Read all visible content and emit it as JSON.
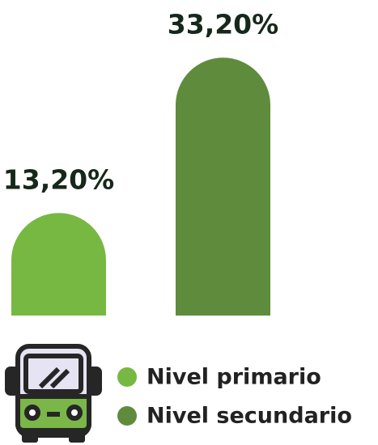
{
  "chart_data": {
    "type": "bar",
    "categories": [
      "Nivel primario",
      "Nivel secundario"
    ],
    "values": [
      13.2,
      33.2
    ],
    "value_labels": [
      "13,20%",
      "33,20%"
    ],
    "colors": [
      "#77b843",
      "#5f8c3c"
    ]
  }
}
